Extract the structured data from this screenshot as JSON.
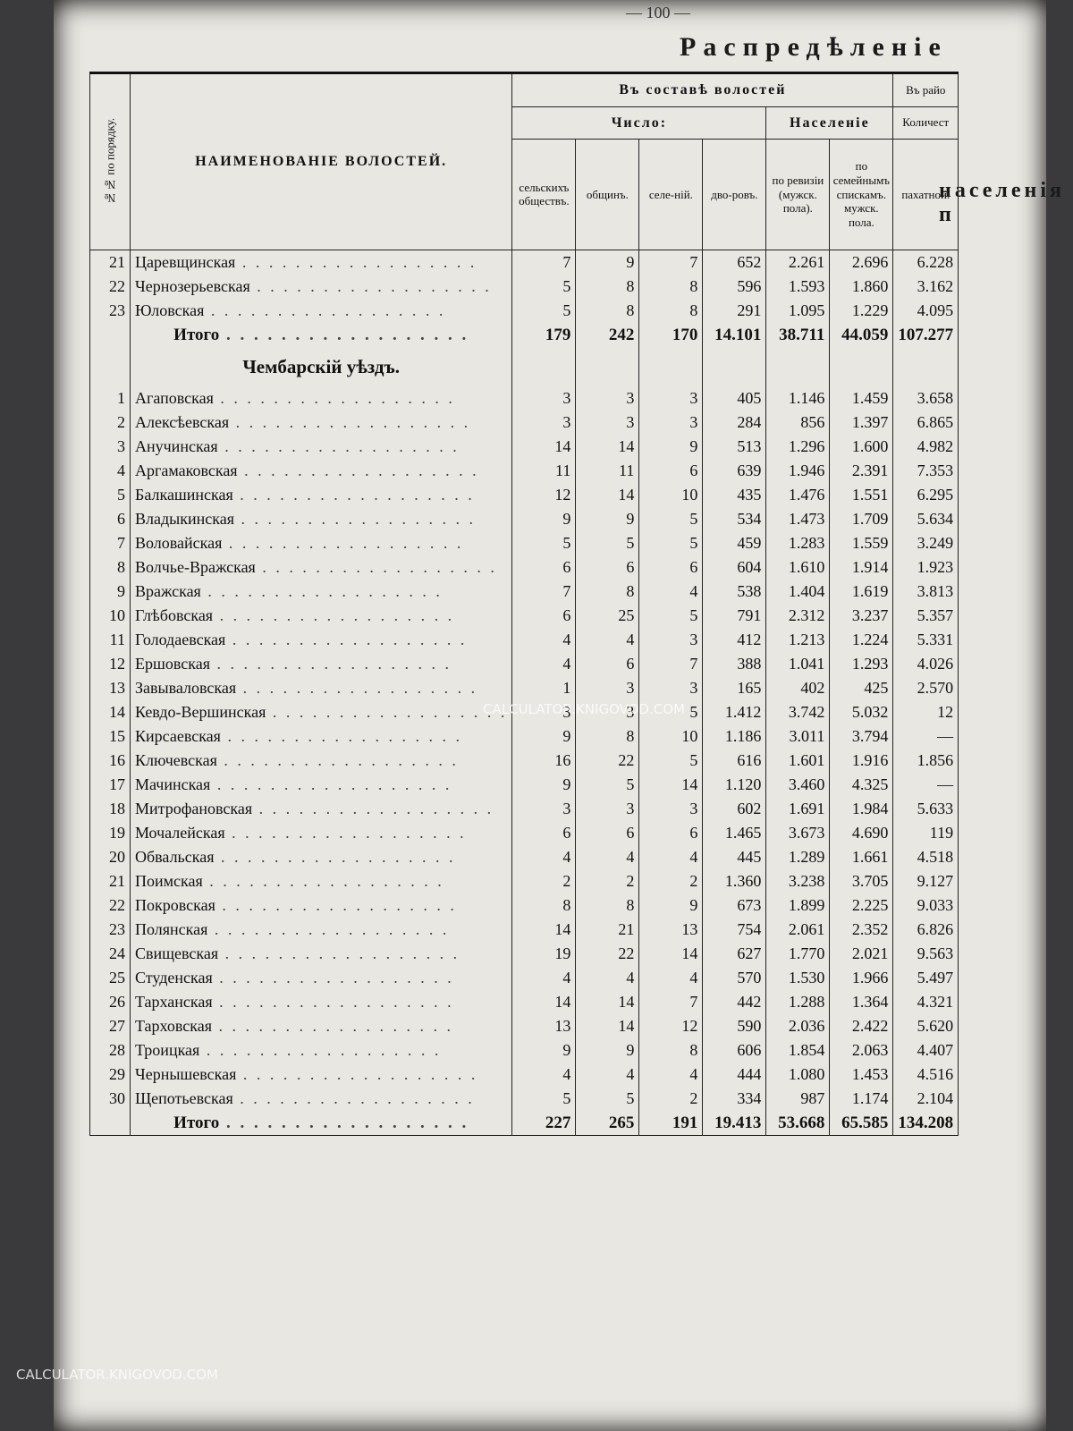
{
  "header": {
    "page_number": "— 100 —",
    "title": "Распредѣленіе",
    "right_title": "населенія п"
  },
  "table": {
    "columns": {
      "no": "№№ по порядку.",
      "name": "НАИМЕНОВАНІЕ ВОЛОСТЕЙ.",
      "group": "Въ составѣ волостей",
      "count": "Число:",
      "societies": "сельскихъ обществъ.",
      "communes": "общинъ.",
      "villages": "селе-ній.",
      "yards": "дво-ровъ.",
      "population": "Населеніе",
      "revision": "по ревизіи (мужск. пола).",
      "family_lists": "по семейнымъ спискамъ.",
      "male": "мужск. пола.",
      "right_group": "Въ райо",
      "right_count": "Количест",
      "arable": "пахатной."
    },
    "sections": [
      {
        "rows": [
          [
            "21",
            "Царевщинская",
            "7",
            "9",
            "7",
            "652",
            "2.261",
            "2.696",
            "6.228"
          ],
          [
            "22",
            "Чернозерьевская",
            "5",
            "8",
            "8",
            "596",
            "1.593",
            "1.860",
            "3.162"
          ],
          [
            "23",
            "Юловская",
            "5",
            "8",
            "8",
            "291",
            "1.095",
            "1.229",
            "4.095"
          ]
        ],
        "total": {
          "label": "Итого",
          "values": [
            "179",
            "242",
            "170",
            "14.101",
            "38.711",
            "44.059",
            "107.277"
          ]
        }
      },
      {
        "title": "Чембарскій уѣздъ.",
        "rows": [
          [
            "1",
            "Агаповская",
            "3",
            "3",
            "3",
            "405",
            "1.146",
            "1.459",
            "3.658"
          ],
          [
            "2",
            "Алексѣевская",
            "3",
            "3",
            "3",
            "284",
            "856",
            "1.397",
            "6.865"
          ],
          [
            "3",
            "Анучинская",
            "14",
            "14",
            "9",
            "513",
            "1.296",
            "1.600",
            "4.982"
          ],
          [
            "4",
            "Аргамаковская",
            "11",
            "11",
            "6",
            "639",
            "1.946",
            "2.391",
            "7.353"
          ],
          [
            "5",
            "Балкашинская",
            "12",
            "14",
            "10",
            "435",
            "1.476",
            "1.551",
            "6.295"
          ],
          [
            "6",
            "Владыкинская",
            "9",
            "9",
            "5",
            "534",
            "1.473",
            "1.709",
            "5.634"
          ],
          [
            "7",
            "Воловайская",
            "5",
            "5",
            "5",
            "459",
            "1.283",
            "1.559",
            "3.249"
          ],
          [
            "8",
            "Волчье-Вражская",
            "6",
            "6",
            "6",
            "604",
            "1.610",
            "1.914",
            "1.923"
          ],
          [
            "9",
            "Вражская",
            "7",
            "8",
            "4",
            "538",
            "1.404",
            "1.619",
            "3.813"
          ],
          [
            "10",
            "Глѣбовская",
            "6",
            "25",
            "5",
            "791",
            "2.312",
            "3.237",
            "5.357"
          ],
          [
            "11",
            "Голодаевская",
            "4",
            "4",
            "3",
            "412",
            "1.213",
            "1.224",
            "5.331"
          ],
          [
            "12",
            "Ершовская",
            "4",
            "6",
            "7",
            "388",
            "1.041",
            "1.293",
            "4.026"
          ],
          [
            "13",
            "Завываловская",
            "1",
            "3",
            "3",
            "165",
            "402",
            "425",
            "2.570"
          ],
          [
            "14",
            "Кевдо-Вершинская",
            "3",
            "3",
            "5",
            "1.412",
            "3.742",
            "5.032",
            "12"
          ],
          [
            "15",
            "Кирсаевская",
            "9",
            "8",
            "10",
            "1.186",
            "3.011",
            "3.794",
            "—"
          ],
          [
            "16",
            "Ключевская",
            "16",
            "22",
            "5",
            "616",
            "1.601",
            "1.916",
            "1.856"
          ],
          [
            "17",
            "Мачинская",
            "9",
            "5",
            "14",
            "1.120",
            "3.460",
            "4.325",
            "—"
          ],
          [
            "18",
            "Митрофановская",
            "3",
            "3",
            "3",
            "602",
            "1.691",
            "1.984",
            "5.633"
          ],
          [
            "19",
            "Мочалейская",
            "6",
            "6",
            "6",
            "1.465",
            "3.673",
            "4.690",
            "119"
          ],
          [
            "20",
            "Обвальская",
            "4",
            "4",
            "4",
            "445",
            "1.289",
            "1.661",
            "4.518"
          ],
          [
            "21",
            "Поимская",
            "2",
            "2",
            "2",
            "1.360",
            "3.238",
            "3.705",
            "9.127"
          ],
          [
            "22",
            "Покровская",
            "8",
            "8",
            "9",
            "673",
            "1.899",
            "2.225",
            "9.033"
          ],
          [
            "23",
            "Полянская",
            "14",
            "21",
            "13",
            "754",
            "2.061",
            "2.352",
            "6.826"
          ],
          [
            "24",
            "Свищевская",
            "19",
            "22",
            "14",
            "627",
            "1.770",
            "2.021",
            "9.563"
          ],
          [
            "25",
            "Студенская",
            "4",
            "4",
            "4",
            "570",
            "1.530",
            "1.966",
            "5.497"
          ],
          [
            "26",
            "Тарханская",
            "14",
            "14",
            "7",
            "442",
            "1.288",
            "1.364",
            "4.321"
          ],
          [
            "27",
            "Тарховская",
            "13",
            "14",
            "12",
            "590",
            "2.036",
            "2.422",
            "5.620"
          ],
          [
            "28",
            "Троицкая",
            "9",
            "9",
            "8",
            "606",
            "1.854",
            "2.063",
            "4.407"
          ],
          [
            "29",
            "Чернышевская",
            "4",
            "4",
            "4",
            "444",
            "1.080",
            "1.453",
            "4.516"
          ],
          [
            "30",
            "Щепотьевская",
            "5",
            "5",
            "2",
            "334",
            "987",
            "1.174",
            "2.104"
          ]
        ],
        "total": {
          "label": "Итого",
          "values": [
            "227",
            "265",
            "191",
            "19.413",
            "53.668",
            "65.585",
            "134.208"
          ]
        }
      }
    ]
  },
  "watermarks": [
    "CALCULATOR.KNIGOVOD.COM",
    "CALCULATOR.KNIGOVOD.COM"
  ]
}
